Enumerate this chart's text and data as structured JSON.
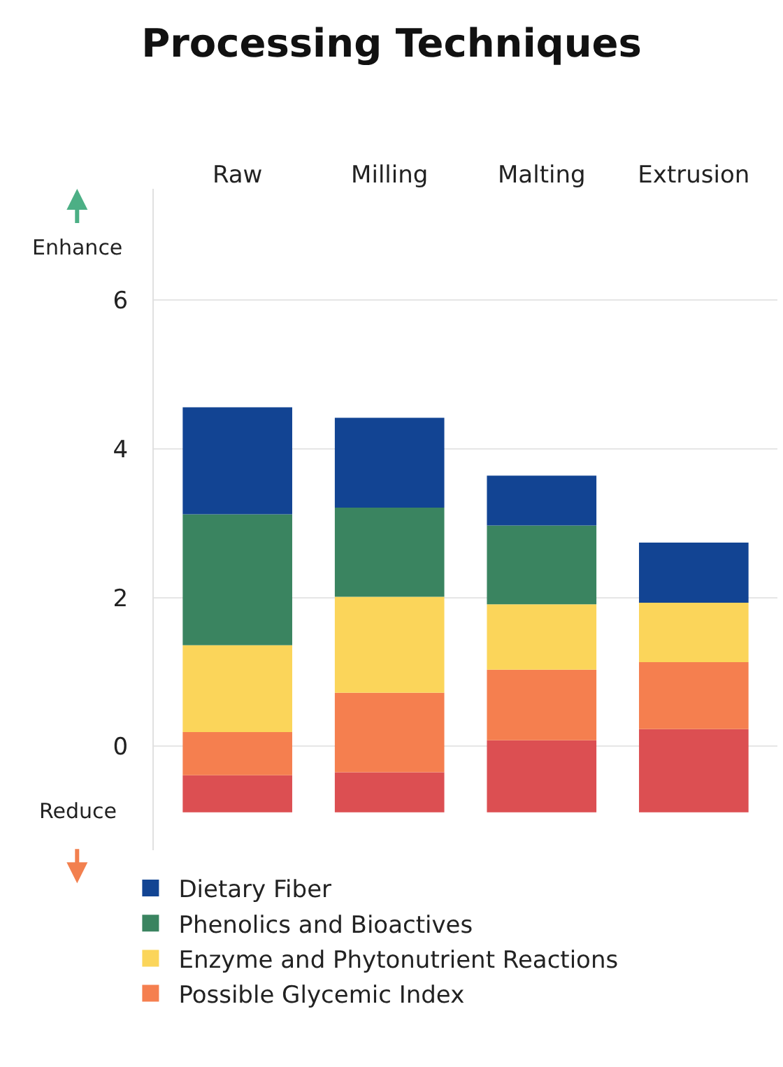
{
  "chart_data": {
    "type": "bar",
    "title": "Processing Techniques",
    "categories": [
      "Raw",
      "Milling",
      "Malting",
      "Extrusion"
    ],
    "series": [
      {
        "color": "#dc4f52",
        "values": [
          0.5,
          0.54,
          0.97,
          1.12
        ],
        "base": [
          -0.89,
          -0.89,
          -0.89,
          -0.89
        ]
      },
      {
        "name": "Possible Glycemic Index",
        "color": "#f57f4f",
        "values": [
          0.58,
          1.07,
          0.95,
          0.9
        ],
        "base": [
          -0.39,
          -0.35,
          0.08,
          0.23
        ]
      },
      {
        "name": "Enzyme and Phytonutrient Reactions",
        "color": "#fbd55a",
        "values": [
          1.17,
          1.29,
          0.88,
          0.8
        ],
        "base": [
          0.19,
          0.72,
          1.03,
          1.13
        ]
      },
      {
        "name": "Phenolics and Bioactives",
        "color": "#3a8460",
        "values": [
          1.76,
          1.2,
          1.06,
          null
        ],
        "base": [
          1.36,
          2.01,
          1.91,
          null
        ]
      },
      {
        "name": "Dietary Fiber",
        "color": "#124493",
        "values": [
          1.44,
          1.21,
          0.67,
          0.81
        ],
        "base": [
          3.12,
          3.21,
          2.97,
          1.93
        ]
      }
    ],
    "ylim": [
      -1.4,
      7.5
    ],
    "yticks": [
      0,
      2,
      4,
      6
    ],
    "grid": "y",
    "legend": "bottom",
    "annotations": [
      "Enhance",
      "Reduce"
    ]
  }
}
